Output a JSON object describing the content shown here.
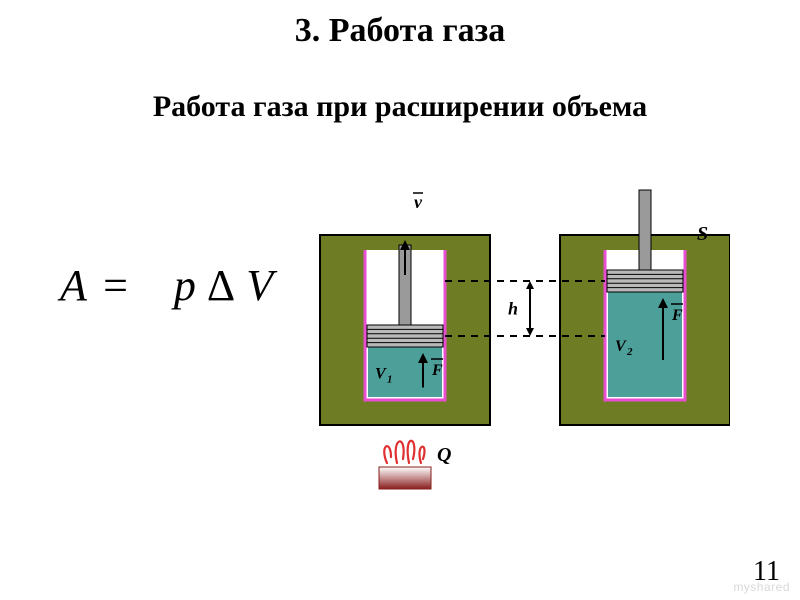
{
  "title": "3. Работа газа",
  "subtitle": "Работа газа при расширении объема",
  "formula": {
    "A": "A",
    "eq": "=",
    "p": "p",
    "delta": "Δ",
    "V": "V"
  },
  "page_number": "11",
  "watermark": "myshared",
  "diagram": {
    "type": "diagram",
    "aspect_w": 430,
    "aspect_h": 330,
    "colors": {
      "background": "#ffffff",
      "wall_fill": "#6e7c23",
      "wall_stroke": "#000000",
      "cavity_border": "#e84fd0",
      "gas_fill": "#4da09a",
      "piston_fill": "#b9b9b9",
      "piston_stroke": "#000000",
      "rod_fill": "#9a9a9a",
      "dashed": "#000000",
      "text": "#000000",
      "heater_body": "#8a1f1f",
      "heater_body_grad_top": "#ffffff",
      "heater_flame": "#e03030"
    },
    "labels": {
      "v_bar": "v",
      "V1": "V",
      "V1_sub": "1",
      "V2": "V",
      "V2_sub": "2",
      "F": "F",
      "S": "S",
      "h": "h",
      "Q": "Q"
    },
    "piston": {
      "stripes": 4,
      "stripe_gap": 4,
      "rod_width": 12,
      "rod_height": 80
    },
    "line_widths": {
      "outer": 2,
      "cavity": 3,
      "dashed": 2,
      "arrow": 2
    }
  }
}
